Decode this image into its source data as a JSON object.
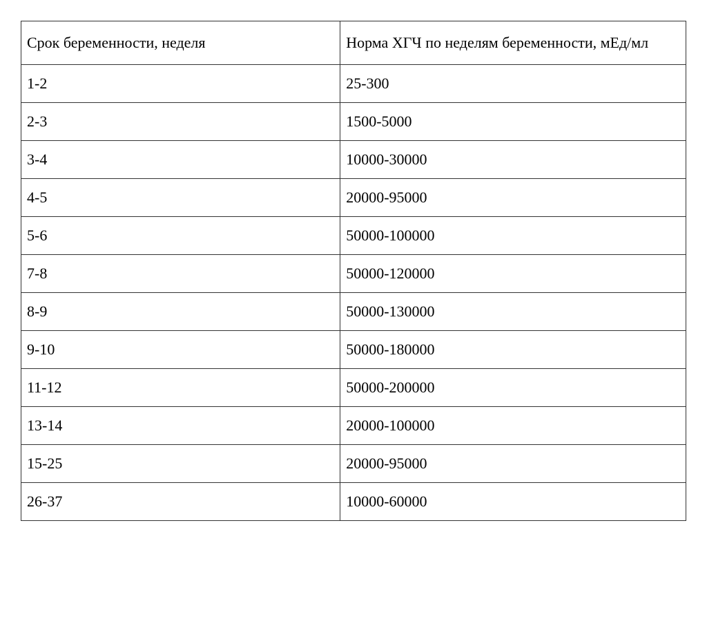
{
  "table": {
    "columns": [
      "Срок беременности, неделя",
      "Норма ХГЧ по неделям беременности, мЕд/мл"
    ],
    "rows": [
      [
        "1-2",
        "25-300"
      ],
      [
        "2-3",
        "1500-5000"
      ],
      [
        "3-4",
        "10000-30000"
      ],
      [
        "4-5",
        "20000-95000"
      ],
      [
        "5-6",
        "50000-100000"
      ],
      [
        "7-8",
        "50000-120000"
      ],
      [
        "8-9",
        "50000-130000"
      ],
      [
        "9-10",
        "50000-180000"
      ],
      [
        "11-12",
        "50000-200000"
      ],
      [
        "13-14",
        "20000-100000"
      ],
      [
        "15-25",
        "20000-95000"
      ],
      [
        "26-37",
        "10000-60000"
      ]
    ],
    "border_color": "#333333",
    "background_color": "#ffffff",
    "text_color": "#000000",
    "font_size": 22,
    "font_family": "serif",
    "column_widths_percent": [
      48,
      52
    ]
  }
}
